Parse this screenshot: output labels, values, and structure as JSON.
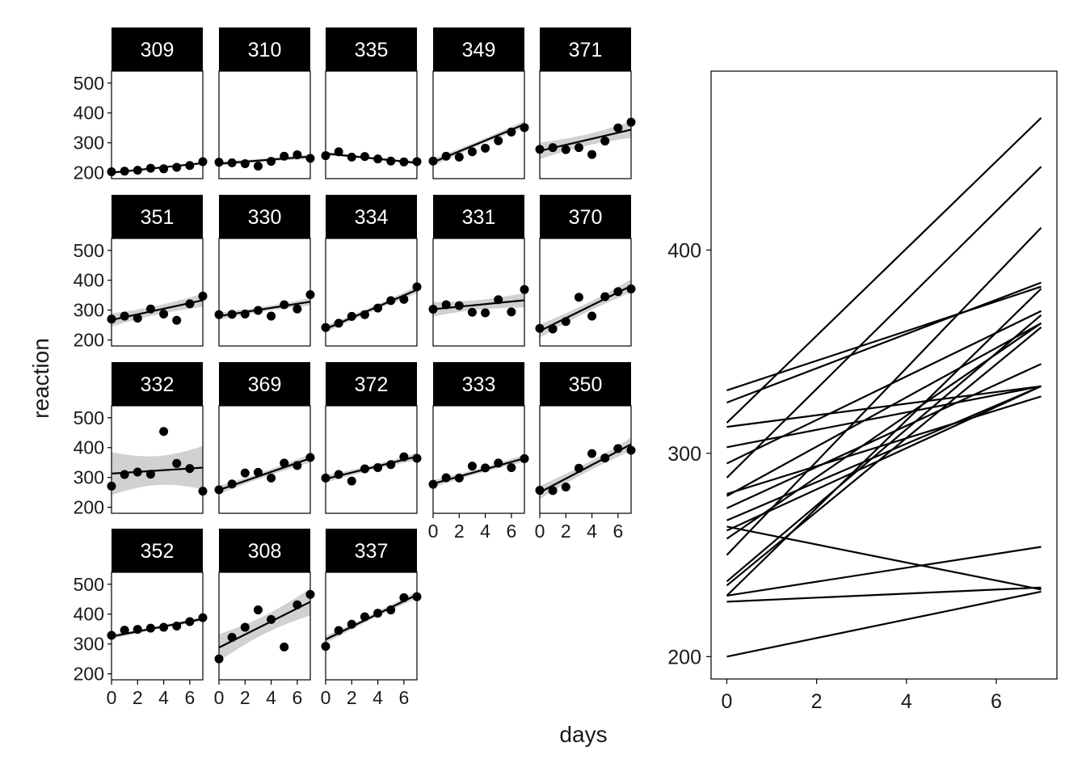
{
  "chart_data": {
    "type": "line",
    "xlabel": "days",
    "ylabel": "reaction",
    "facet_panel": {
      "type": "scatter",
      "panel_order": [
        "309",
        "310",
        "335",
        "349",
        "371",
        "351",
        "330",
        "334",
        "331",
        "370",
        "332",
        "369",
        "372",
        "333",
        "350",
        "352",
        "308",
        "337"
      ],
      "xlim": [
        0,
        7
      ],
      "ylim": [
        180,
        540
      ],
      "x_ticks": [
        0,
        2,
        4,
        6
      ],
      "y_ticks": [
        200,
        300,
        400,
        500
      ],
      "x": [
        0,
        1,
        2,
        3,
        4,
        5,
        6,
        7
      ],
      "subjects": [
        {
          "id": "309",
          "reaction": [
            203,
            205,
            208,
            215,
            213,
            218,
            224,
            237
          ],
          "fit": [
            200,
            232
          ],
          "band": 4
        },
        {
          "id": "310",
          "reaction": [
            235,
            233,
            230,
            222,
            238,
            255,
            260,
            248
          ],
          "fit": [
            230,
            254
          ],
          "band": 8
        },
        {
          "id": "335",
          "reaction": [
            257,
            270,
            252,
            254,
            246,
            239,
            236,
            237
          ],
          "fit": [
            264,
            233
          ],
          "band": 6
        },
        {
          "id": "349",
          "reaction": [
            239,
            255,
            252,
            270,
            282,
            307,
            336,
            351
          ],
          "fit": [
            235,
            362
          ],
          "band": 12
        },
        {
          "id": "371",
          "reaction": [
            278,
            284,
            277,
            284,
            261,
            306,
            350,
            369
          ],
          "fit": [
            273,
            344
          ],
          "band": 28
        },
        {
          "id": "351",
          "reaction": [
            270,
            280,
            273,
            304,
            287,
            266,
            321,
            347
          ],
          "fit": [
            267,
            333
          ],
          "band": 22
        },
        {
          "id": "330",
          "reaction": [
            285,
            286,
            287,
            299,
            280,
            318,
            304,
            352
          ],
          "fit": [
            280,
            328
          ],
          "band": 12
        },
        {
          "id": "334",
          "reaction": [
            242,
            256,
            279,
            285,
            307,
            332,
            336,
            378
          ],
          "fit": [
            237,
            368
          ],
          "band": 12
        },
        {
          "id": "331",
          "reaction": [
            303,
            318,
            315,
            293,
            291,
            335,
            294,
            369
          ],
          "fit": [
            303,
            333
          ],
          "band": 24
        },
        {
          "id": "370",
          "reaction": [
            239,
            237,
            262,
            343,
            280,
            345,
            362,
            371
          ],
          "fit": [
            230,
            381
          ],
          "band": 22
        },
        {
          "id": "332",
          "reaction": [
            271,
            310,
            318,
            311,
            454,
            347,
            330,
            254
          ],
          "fit": [
            313,
            333
          ],
          "band": 72
        },
        {
          "id": "369",
          "reaction": [
            259,
            278,
            315,
            317,
            298,
            348,
            340,
            367
          ],
          "fit": [
            258,
            364
          ],
          "band": 14
        },
        {
          "id": "372",
          "reaction": [
            298,
            310,
            288,
            329,
            333,
            343,
            369,
            364
          ],
          "fit": [
            295,
            370
          ],
          "band": 12
        },
        {
          "id": "333",
          "reaction": [
            277,
            299,
            298,
            338,
            332,
            348,
            333,
            363
          ],
          "fit": [
            279,
            364
          ],
          "band": 12
        },
        {
          "id": "350",
          "reaction": [
            257,
            256,
            268,
            331,
            380,
            365,
            397,
            391
          ],
          "fit": [
            250,
            411
          ],
          "band": 22
        },
        {
          "id": "352",
          "reaction": [
            329,
            346,
            349,
            353,
            356,
            360,
            375,
            388
          ],
          "fit": [
            325,
            384
          ],
          "band": 8
        },
        {
          "id": "308",
          "reaction": [
            250,
            322,
            356,
            414,
            382,
            290,
            431,
            466
          ],
          "fit": [
            288,
            441
          ],
          "band": 45
        },
        {
          "id": "337",
          "reaction": [
            292,
            345,
            366,
            391,
            403,
            414,
            455,
            458
          ],
          "fit": [
            315,
            465
          ],
          "band": 12
        }
      ]
    },
    "summary_panel": {
      "type": "line",
      "xlim": [
        -0.35,
        7.35
      ],
      "ylim": [
        189,
        488
      ],
      "x_ticks": [
        0,
        2,
        4,
        6
      ],
      "y_ticks": [
        200,
        300,
        400
      ],
      "line_x": [
        0,
        7
      ],
      "lines": [
        [
          200,
          232
        ],
        [
          230,
          254
        ],
        [
          264,
          233
        ],
        [
          235,
          362
        ],
        [
          273,
          344
        ],
        [
          267,
          333
        ],
        [
          280,
          328
        ],
        [
          237,
          368
        ],
        [
          303,
          333
        ],
        [
          230,
          381
        ],
        [
          313,
          333
        ],
        [
          258,
          364
        ],
        [
          295,
          370
        ],
        [
          279,
          364
        ],
        [
          250,
          411
        ],
        [
          325,
          384
        ],
        [
          288,
          441
        ],
        [
          315,
          465
        ],
        [
          331,
          382
        ],
        [
          262,
          333
        ],
        [
          227,
          234
        ]
      ]
    }
  }
}
